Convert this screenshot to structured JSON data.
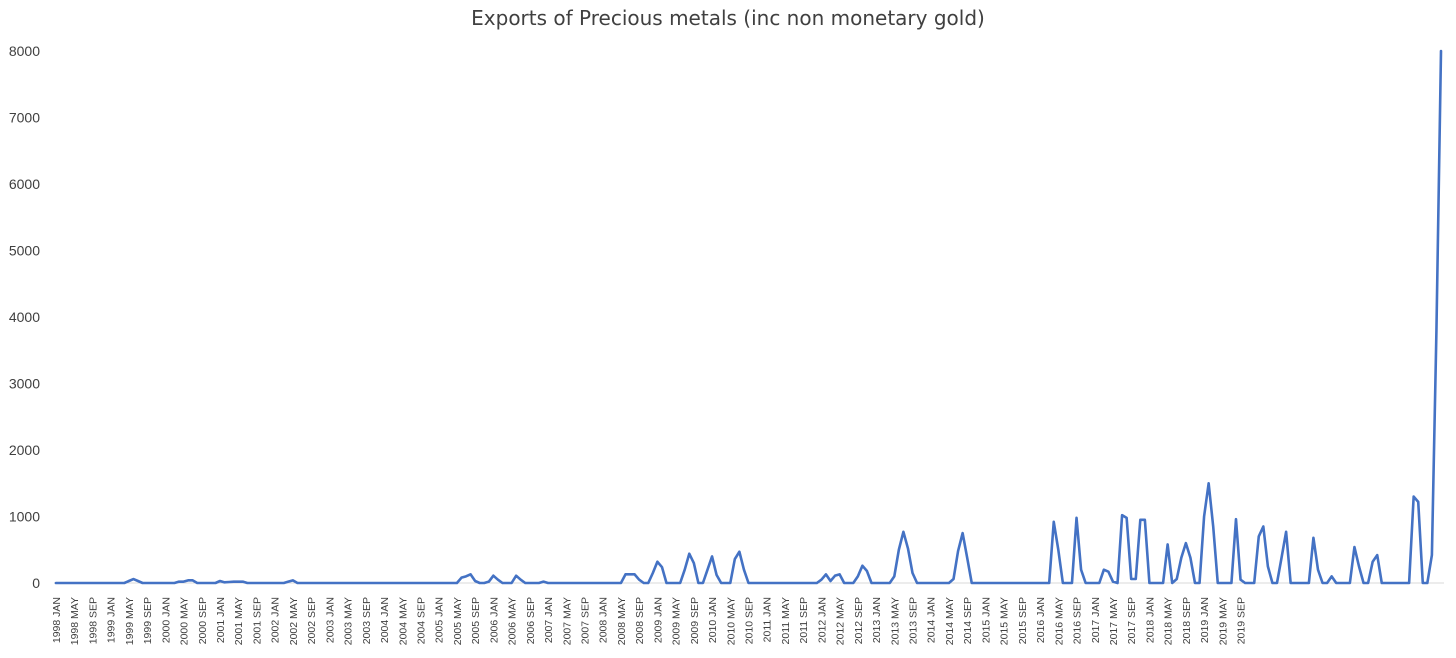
{
  "chart_data": {
    "type": "line",
    "title": "Exports of Precious metals (inc non monetary gold)",
    "xlabel": "",
    "ylabel": "",
    "ylim": [
      0,
      8000
    ],
    "yticks": [
      0,
      1000,
      2000,
      3000,
      4000,
      5000,
      6000,
      7000,
      8000
    ],
    "grid": false,
    "legend": "none",
    "line_color": "#4472c4",
    "start": {
      "year": 1998,
      "month": 1
    },
    "x_tick_labels": [
      "1998 JAN",
      "1998 MAY",
      "1998 SEP",
      "1999 JAN",
      "1999 MAY",
      "1999 SEP",
      "2000 JAN",
      "2000 MAY",
      "2000 SEP",
      "2001 JAN",
      "2001 MAY",
      "2001 SEP",
      "2002 JAN",
      "2002 MAY",
      "2002 SEP",
      "2003 JAN",
      "2003 MAY",
      "2003 SEP",
      "2004 JAN",
      "2004 MAY",
      "2004 SEP",
      "2005 JAN",
      "2005 MAY",
      "2005 SEP",
      "2006 JAN",
      "2006 MAY",
      "2006 SEP",
      "2007 JAN",
      "2007 MAY",
      "2007 SEP",
      "2008 JAN",
      "2008 MAY",
      "2008 SEP",
      "2009 JAN",
      "2009 MAY",
      "2009 SEP",
      "2010 JAN",
      "2010 MAY",
      "2010 SEP",
      "2011 JAN",
      "2011 MAY",
      "2011 SEP",
      "2012 JAN",
      "2012 MAY",
      "2012 SEP",
      "2013 JAN",
      "2013 MAY",
      "2013 SEP",
      "2014 JAN",
      "2014 MAY",
      "2014 SEP",
      "2015 JAN",
      "2015 MAY",
      "2015 SEP",
      "2016 JAN",
      "2016 MAY",
      "2016 SEP",
      "2017 JAN",
      "2017 MAY",
      "2017 SEP",
      "2018 JAN",
      "2018 MAY",
      "2018 SEP",
      "2019 JAN",
      "2019 MAY",
      "2019 SEP"
    ],
    "values": [
      0,
      0,
      0,
      0,
      0,
      0,
      0,
      0,
      0,
      0,
      0,
      0,
      0,
      0,
      0,
      0,
      30,
      60,
      30,
      0,
      0,
      0,
      0,
      0,
      0,
      0,
      0,
      20,
      20,
      40,
      40,
      0,
      0,
      0,
      0,
      0,
      30,
      10,
      15,
      20,
      20,
      20,
      0,
      0,
      0,
      0,
      0,
      0,
      0,
      0,
      0,
      20,
      40,
      0,
      0,
      0,
      0,
      0,
      0,
      0,
      0,
      0,
      0,
      0,
      0,
      0,
      0,
      0,
      0,
      0,
      0,
      0,
      0,
      0,
      0,
      0,
      0,
      0,
      0,
      0,
      0,
      0,
      0,
      0,
      0,
      0,
      0,
      0,
      0,
      80,
      100,
      130,
      30,
      0,
      0,
      20,
      110,
      50,
      0,
      0,
      0,
      110,
      50,
      0,
      0,
      0,
      0,
      20,
      0,
      0,
      0,
      0,
      0,
      0,
      0,
      0,
      0,
      0,
      0,
      0,
      0,
      0,
      0,
      0,
      0,
      130,
      130,
      130,
      50,
      0,
      0,
      150,
      320,
      240,
      0,
      0,
      0,
      0,
      200,
      440,
      300,
      0,
      0,
      200,
      400,
      120,
      0,
      0,
      0,
      360,
      470,
      200,
      0,
      0,
      0,
      0,
      0,
      0,
      0,
      0,
      0,
      0,
      0,
      0,
      0,
      0,
      0,
      0,
      50,
      130,
      30,
      110,
      130,
      0,
      0,
      0,
      100,
      260,
      180,
      0,
      0,
      0,
      0,
      0,
      100,
      500,
      770,
      520,
      150,
      0,
      0,
      0,
      0,
      0,
      0,
      0,
      0,
      60,
      480,
      750,
      380,
      0,
      0,
      0,
      0,
      0,
      0,
      0,
      0,
      0,
      0,
      0,
      0,
      0,
      0,
      0,
      0,
      0,
      0,
      920,
      500,
      0,
      0,
      0,
      980,
      200,
      0,
      0,
      0,
      0,
      200,
      170,
      20,
      0,
      1020,
      980,
      60,
      60,
      950,
      950,
      0,
      0,
      0,
      0,
      580,
      0,
      60,
      380,
      600,
      380,
      0,
      0,
      1000,
      1500,
      850,
      0,
      0,
      0,
      0,
      960,
      50,
      0,
      0,
      0,
      700,
      850,
      250,
      0,
      0,
      380,
      770,
      0,
      0,
      0,
      0,
      0,
      680,
      200,
      0,
      0,
      100,
      0,
      0,
      0,
      0,
      540,
      250,
      0,
      0,
      320,
      420,
      0,
      0,
      0,
      0,
      0,
      0,
      0,
      1300,
      1220,
      0,
      0,
      420,
      3800,
      8000
    ]
  }
}
